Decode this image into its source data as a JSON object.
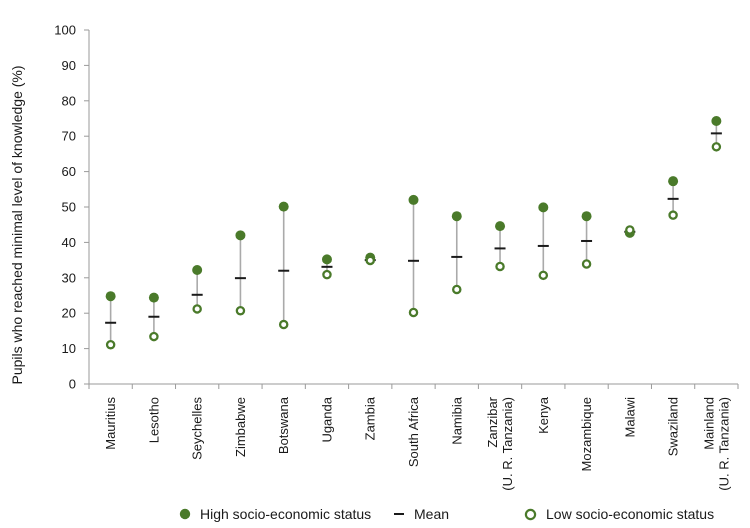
{
  "chart_data": {
    "type": "scatter",
    "title": "",
    "xlabel": "",
    "ylabel": "Pupils who reached minimal level of knowledge (%)",
    "ylim": [
      0,
      100
    ],
    "yticks": [
      0,
      10,
      20,
      30,
      40,
      50,
      60,
      70,
      80,
      90,
      100
    ],
    "categories": [
      [
        "Mauritius"
      ],
      [
        "Lesotho"
      ],
      [
        "Seychelles"
      ],
      [
        "Zimbabwe"
      ],
      [
        "Botswana"
      ],
      [
        "Uganda"
      ],
      [
        "Zambia"
      ],
      [
        "South Africa"
      ],
      [
        "Namibia"
      ],
      [
        "Zanzibar",
        "(U. R. Tanzania)"
      ],
      [
        "Kenya"
      ],
      [
        "Mozambique"
      ],
      [
        "Malawi"
      ],
      [
        "Swaziland"
      ],
      [
        "Mainland",
        "(U. R. Tanzania)"
      ]
    ],
    "series": [
      {
        "name": "High socio-economic status",
        "marker": "filled-circle",
        "values": [
          24.8,
          24.4,
          32.2,
          42.0,
          50.1,
          35.2,
          35.7,
          52.0,
          47.4,
          44.6,
          49.9,
          47.4,
          42.7,
          57.3,
          74.3
        ]
      },
      {
        "name": "Mean",
        "marker": "dash",
        "values": [
          17.3,
          19.0,
          25.2,
          29.9,
          32.0,
          33.1,
          35.0,
          34.8,
          35.9,
          38.3,
          39.0,
          40.4,
          43.0,
          52.3,
          70.8
        ]
      },
      {
        "name": "Low socio-economic status",
        "marker": "hollow-circle",
        "values": [
          11.1,
          13.4,
          21.2,
          20.7,
          16.8,
          30.9,
          34.9,
          20.2,
          26.7,
          33.2,
          30.7,
          33.9,
          43.5,
          47.7,
          67.0
        ]
      }
    ],
    "colors": {
      "high": "#4a7a2a",
      "low": "#4a7a2a",
      "mean": "#1a1a1a",
      "range_line": "#aaaaaa",
      "axis": "#9a9a9a"
    },
    "legend_position": "bottom"
  }
}
